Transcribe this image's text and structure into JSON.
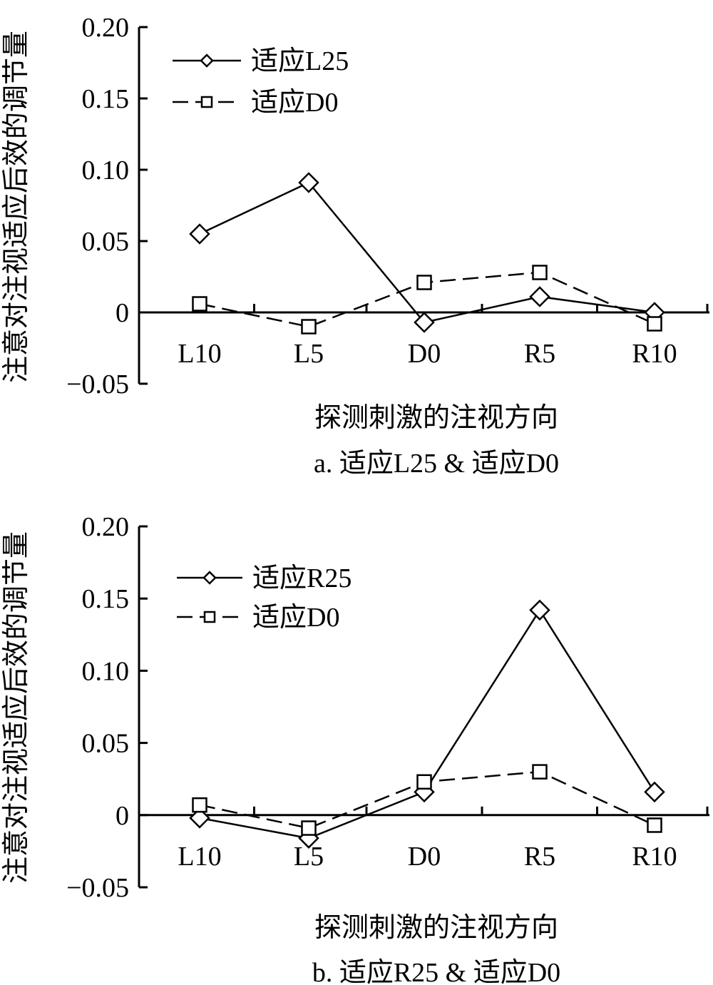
{
  "chart_data": [
    {
      "type": "line",
      "caption": "a. 适应L25 & 适应D0",
      "xlabel": "探测刺激的注视方向",
      "ylabel": "注意对注视适应后效的调节量",
      "categories": [
        "L10",
        "L5",
        "D0",
        "R5",
        "R10"
      ],
      "yticks": [
        "0.20",
        "0.15",
        "0.10",
        "0.05",
        "0",
        "−0.05"
      ],
      "ylim": [
        -0.05,
        0.2
      ],
      "legend_position": "top-left",
      "series": [
        {
          "name": "适应L25",
          "style": "solid",
          "marker": "diamond",
          "values": [
            0.055,
            0.091,
            -0.007,
            0.011,
            0.0
          ]
        },
        {
          "name": "适应D0",
          "style": "dashed",
          "marker": "square",
          "values": [
            0.006,
            -0.01,
            0.021,
            0.028,
            -0.008
          ]
        }
      ]
    },
    {
      "type": "line",
      "caption": "b. 适应R25 & 适应D0",
      "xlabel": "探测刺激的注视方向",
      "ylabel": "注意对注视适应后效的调节量",
      "categories": [
        "L10",
        "L5",
        "D0",
        "R5",
        "R10"
      ],
      "yticks": [
        "0.20",
        "0.15",
        "0.10",
        "0.05",
        "0",
        "−0.05"
      ],
      "ylim": [
        -0.05,
        0.2
      ],
      "legend_position": "top-left",
      "series": [
        {
          "name": "适应R25",
          "style": "solid",
          "marker": "diamond",
          "values": [
            -0.002,
            -0.016,
            0.016,
            0.142,
            0.016
          ]
        },
        {
          "name": "适应D0",
          "style": "dashed",
          "marker": "square",
          "values": [
            0.007,
            -0.009,
            0.023,
            0.03,
            -0.007
          ]
        }
      ]
    }
  ]
}
